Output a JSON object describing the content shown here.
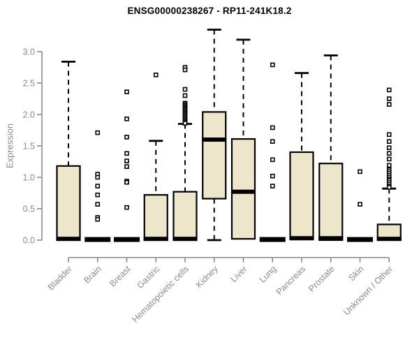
{
  "chart_data": {
    "type": "boxplot",
    "title": "ENSG00000238267 - RP11-241K18.2",
    "ylabel": "Expression",
    "xlabel": "",
    "ylim": [
      0.0,
      3.35
    ],
    "yticks": [
      0.0,
      0.5,
      1.0,
      1.5,
      2.0,
      2.5,
      3.0
    ],
    "grid": false,
    "legend": "none",
    "colors": {
      "box_fill": "#EDE6CB",
      "box_border": "#000000",
      "median": "#000000",
      "whisker": "#000000",
      "outlier_stroke": "#000000",
      "outlier_fill": "#ffffff",
      "axis": "#8a8a8a",
      "tick_label": "#8a8a8a",
      "title": "#000000"
    },
    "categories": [
      "Bladder",
      "Brain",
      "Breast",
      "Gastric",
      "Hematopoietic cells",
      "Kidney",
      "Liver",
      "Lung",
      "Pancreas",
      "Prostate",
      "Skin",
      "Unknown / Other"
    ],
    "series": [
      {
        "name": "Bladder",
        "low": 0.0,
        "q1": 0.0,
        "median": 0.02,
        "q3": 1.18,
        "high": 2.84,
        "outliers": []
      },
      {
        "name": "Brain",
        "low": 0.01,
        "q1": 0.01,
        "median": 0.01,
        "q3": 0.01,
        "high": 0.01,
        "outliers": [
          1.71,
          1.05,
          1.0,
          0.86,
          0.72,
          0.57,
          0.36,
          0.33
        ]
      },
      {
        "name": "Breast",
        "low": 0.01,
        "q1": 0.01,
        "median": 0.01,
        "q3": 0.01,
        "high": 0.01,
        "outliers": [
          2.36,
          1.93,
          1.64,
          1.38,
          1.26,
          1.17,
          0.94,
          0.92,
          0.52
        ]
      },
      {
        "name": "Gastric",
        "low": 0.0,
        "q1": 0.0,
        "median": 0.02,
        "q3": 0.72,
        "high": 1.58,
        "outliers": [
          2.63
        ]
      },
      {
        "name": "Hematopoietic cells",
        "low": 0.0,
        "q1": 0.0,
        "median": 0.02,
        "q3": 0.77,
        "high": 1.85,
        "outliers": [
          2.75,
          2.71,
          2.4,
          2.3,
          2.18,
          2.16,
          2.14,
          2.12,
          2.1,
          2.08,
          2.06,
          2.04,
          2.02,
          2.0,
          1.98,
          1.96,
          1.94,
          1.92,
          1.9,
          1.88,
          1.86
        ]
      },
      {
        "name": "Kidney",
        "low": 0.0,
        "q1": 0.66,
        "median": 1.6,
        "q3": 2.04,
        "high": 3.35,
        "outliers": []
      },
      {
        "name": "Liver",
        "low": 0.02,
        "q1": 0.02,
        "median": 0.77,
        "q3": 1.61,
        "high": 3.19,
        "outliers": []
      },
      {
        "name": "Lung",
        "low": 0.01,
        "q1": 0.01,
        "median": 0.01,
        "q3": 0.01,
        "high": 0.01,
        "outliers": [
          2.79,
          1.79,
          1.57,
          1.28,
          1.02,
          0.86
        ]
      },
      {
        "name": "Pancreas",
        "low": 0.02,
        "q1": 0.02,
        "median": 0.03,
        "q3": 1.4,
        "high": 2.66,
        "outliers": []
      },
      {
        "name": "Prostate",
        "low": 0.0,
        "q1": 0.0,
        "median": 0.03,
        "q3": 1.22,
        "high": 2.94,
        "outliers": []
      },
      {
        "name": "Skin",
        "low": 0.01,
        "q1": 0.01,
        "median": 0.01,
        "q3": 0.01,
        "high": 0.01,
        "outliers": [
          1.09,
          0.57
        ]
      },
      {
        "name": "Unknown / Other",
        "low": 0.0,
        "q1": 0.0,
        "median": 0.02,
        "q3": 0.25,
        "high": 0.82,
        "outliers": [
          2.39,
          2.25,
          2.16,
          1.68,
          1.57,
          1.47,
          1.38,
          1.29,
          1.19,
          1.12,
          1.09,
          1.06,
          1.03,
          1.0,
          0.97,
          0.95,
          0.92,
          0.89,
          0.86,
          0.84
        ]
      }
    ]
  }
}
